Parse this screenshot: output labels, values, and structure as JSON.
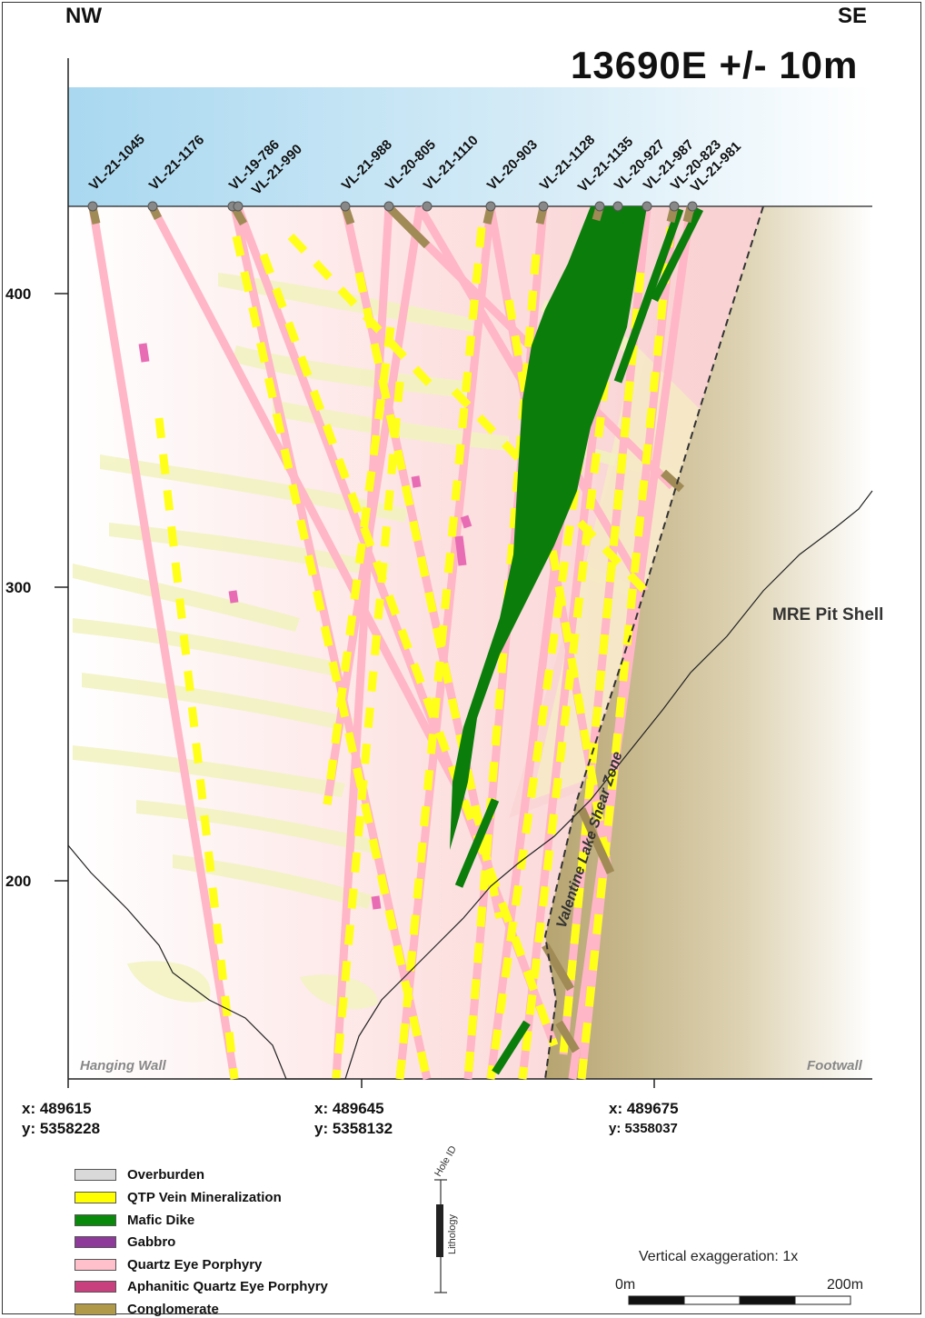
{
  "corner_left": "NW",
  "corner_right": "SE",
  "section_title": "13690E +/- 10m",
  "y_ticks": [
    {
      "value": 400,
      "label": "400"
    },
    {
      "value": 300,
      "label": "300"
    },
    {
      "value": 200,
      "label": "200"
    }
  ],
  "hole_labels": [
    "VL-21-1045",
    "VL-21-1176",
    "VL-19-786",
    "VL-21-990",
    "VL-21-988",
    "VL-20-805",
    "VL-21-1110",
    "VL-20-903",
    "VL-21-1128",
    "VL-21-1135",
    "VL-20-927",
    "VL-21-987",
    "VL-20-823",
    "VL-21-981"
  ],
  "annotations": {
    "pit_shell": "MRE Pit Shell",
    "shear_zone": "Valentine Lake Shear Zone",
    "hanging_wall": "Hanging Wall",
    "footwall": "Footwall"
  },
  "coordinates": [
    {
      "x": "x: 489615",
      "y": "y: 5358228"
    },
    {
      "x": "x: 489645",
      "y": "y: 5358132"
    },
    {
      "x": "x: 489675",
      "y": "y: 5358037"
    }
  ],
  "legend": [
    {
      "label": "Overburden",
      "color": "#d9d9d9"
    },
    {
      "label": "QTP Vein Mineralization",
      "color": "#ffff00"
    },
    {
      "label": "Mafic Dike",
      "color": "#0a8a0a"
    },
    {
      "label": "Gabbro",
      "color": "#8e3a9a"
    },
    {
      "label": "Quartz Eye Porphyry",
      "color": "#ffc0cb"
    },
    {
      "label": "Aphanitic Quartz Eye Porphyry",
      "color": "#c8407e"
    },
    {
      "label": "Conglomerate",
      "color": "#b09a4a"
    }
  ],
  "hole_legend": {
    "hole_id": "Hole ID",
    "lithology": "Lithology"
  },
  "vertical_exaggeration": "Vertical exaggeration: 1x",
  "scale": {
    "start": "0m",
    "end": "200m"
  },
  "colors": {
    "sky": "#bfe1f2",
    "host_pink": "#fbdede",
    "vein_pale": "#f1f3c0",
    "mafic": "#0a8a0a",
    "qep": "#ffbac6",
    "qtp": "#ffff22",
    "cong": "#a08a55",
    "footwall": "#cdbd95"
  }
}
